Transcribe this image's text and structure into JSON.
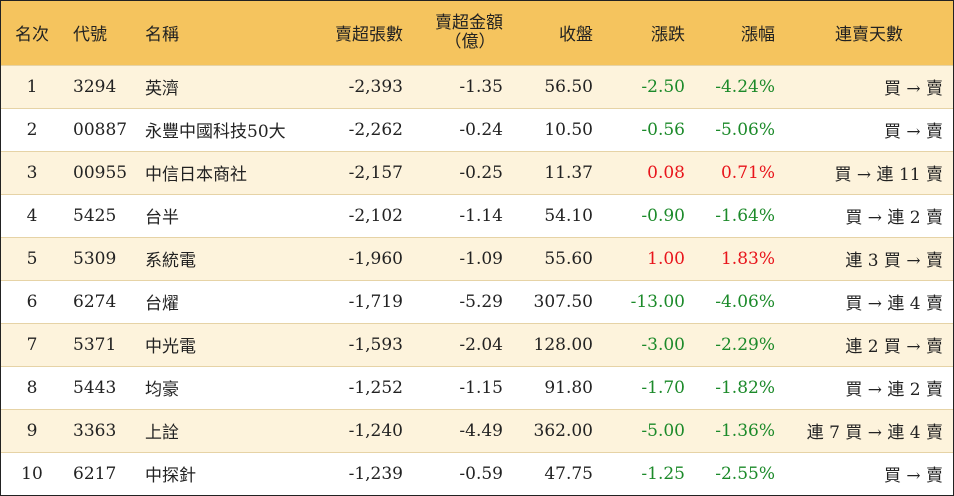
{
  "table": {
    "headers": {
      "rank": "名次",
      "code": "代號",
      "name": "名稱",
      "net_sell_lots": "賣超張數",
      "net_sell_amount_line1": "賣超金額",
      "net_sell_amount_line2": "（億）",
      "close": "收盤",
      "change": "漲跌",
      "change_pct": "漲幅",
      "streak": "連賣天數"
    },
    "rows": [
      {
        "rank": "1",
        "code": "3294",
        "name": "英濟",
        "net_sell_lots": "-2,393",
        "net_sell_amount": "-1.35",
        "close": "56.50",
        "change": "-2.50",
        "change_pct": "-4.24%",
        "streak": "買 → 賣"
      },
      {
        "rank": "2",
        "code": "00887",
        "name": "永豐中國科技50大",
        "net_sell_lots": "-2,262",
        "net_sell_amount": "-0.24",
        "close": "10.50",
        "change": "-0.56",
        "change_pct": "-5.06%",
        "streak": "買 → 賣"
      },
      {
        "rank": "3",
        "code": "00955",
        "name": "中信日本商社",
        "net_sell_lots": "-2,157",
        "net_sell_amount": "-0.25",
        "close": "11.37",
        "change": "0.08",
        "change_pct": "0.71%",
        "streak": "買 → 連 11 賣"
      },
      {
        "rank": "4",
        "code": "5425",
        "name": "台半",
        "net_sell_lots": "-2,102",
        "net_sell_amount": "-1.14",
        "close": "54.10",
        "change": "-0.90",
        "change_pct": "-1.64%",
        "streak": "買 → 連 2 賣"
      },
      {
        "rank": "5",
        "code": "5309",
        "name": "系統電",
        "net_sell_lots": "-1,960",
        "net_sell_amount": "-1.09",
        "close": "55.60",
        "change": "1.00",
        "change_pct": "1.83%",
        "streak": "連 3 買 → 賣"
      },
      {
        "rank": "6",
        "code": "6274",
        "name": "台燿",
        "net_sell_lots": "-1,719",
        "net_sell_amount": "-5.29",
        "close": "307.50",
        "change": "-13.00",
        "change_pct": "-4.06%",
        "streak": "買 → 連 4 賣"
      },
      {
        "rank": "7",
        "code": "5371",
        "name": "中光電",
        "net_sell_lots": "-1,593",
        "net_sell_amount": "-2.04",
        "close": "128.00",
        "change": "-3.00",
        "change_pct": "-2.29%",
        "streak": "連 2 買 → 賣"
      },
      {
        "rank": "8",
        "code": "5443",
        "name": "均豪",
        "net_sell_lots": "-1,252",
        "net_sell_amount": "-1.15",
        "close": "91.80",
        "change": "-1.70",
        "change_pct": "-1.82%",
        "streak": "買 → 連 2 賣"
      },
      {
        "rank": "9",
        "code": "3363",
        "name": "上詮",
        "net_sell_lots": "-1,240",
        "net_sell_amount": "-4.49",
        "close": "362.00",
        "change": "-5.00",
        "change_pct": "-1.36%",
        "streak": "連 7 買 → 連 4 賣"
      },
      {
        "rank": "10",
        "code": "6217",
        "name": "中探針",
        "net_sell_lots": "-1,239",
        "net_sell_amount": "-0.59",
        "close": "47.75",
        "change": "-1.25",
        "change_pct": "-2.55%",
        "streak": "買 → 賣"
      }
    ]
  },
  "colors": {
    "header_bg": "#f5c45e",
    "stripe_bg": "#fdf3dc",
    "up": "#e8141b",
    "down": "#1c8a2a"
  }
}
